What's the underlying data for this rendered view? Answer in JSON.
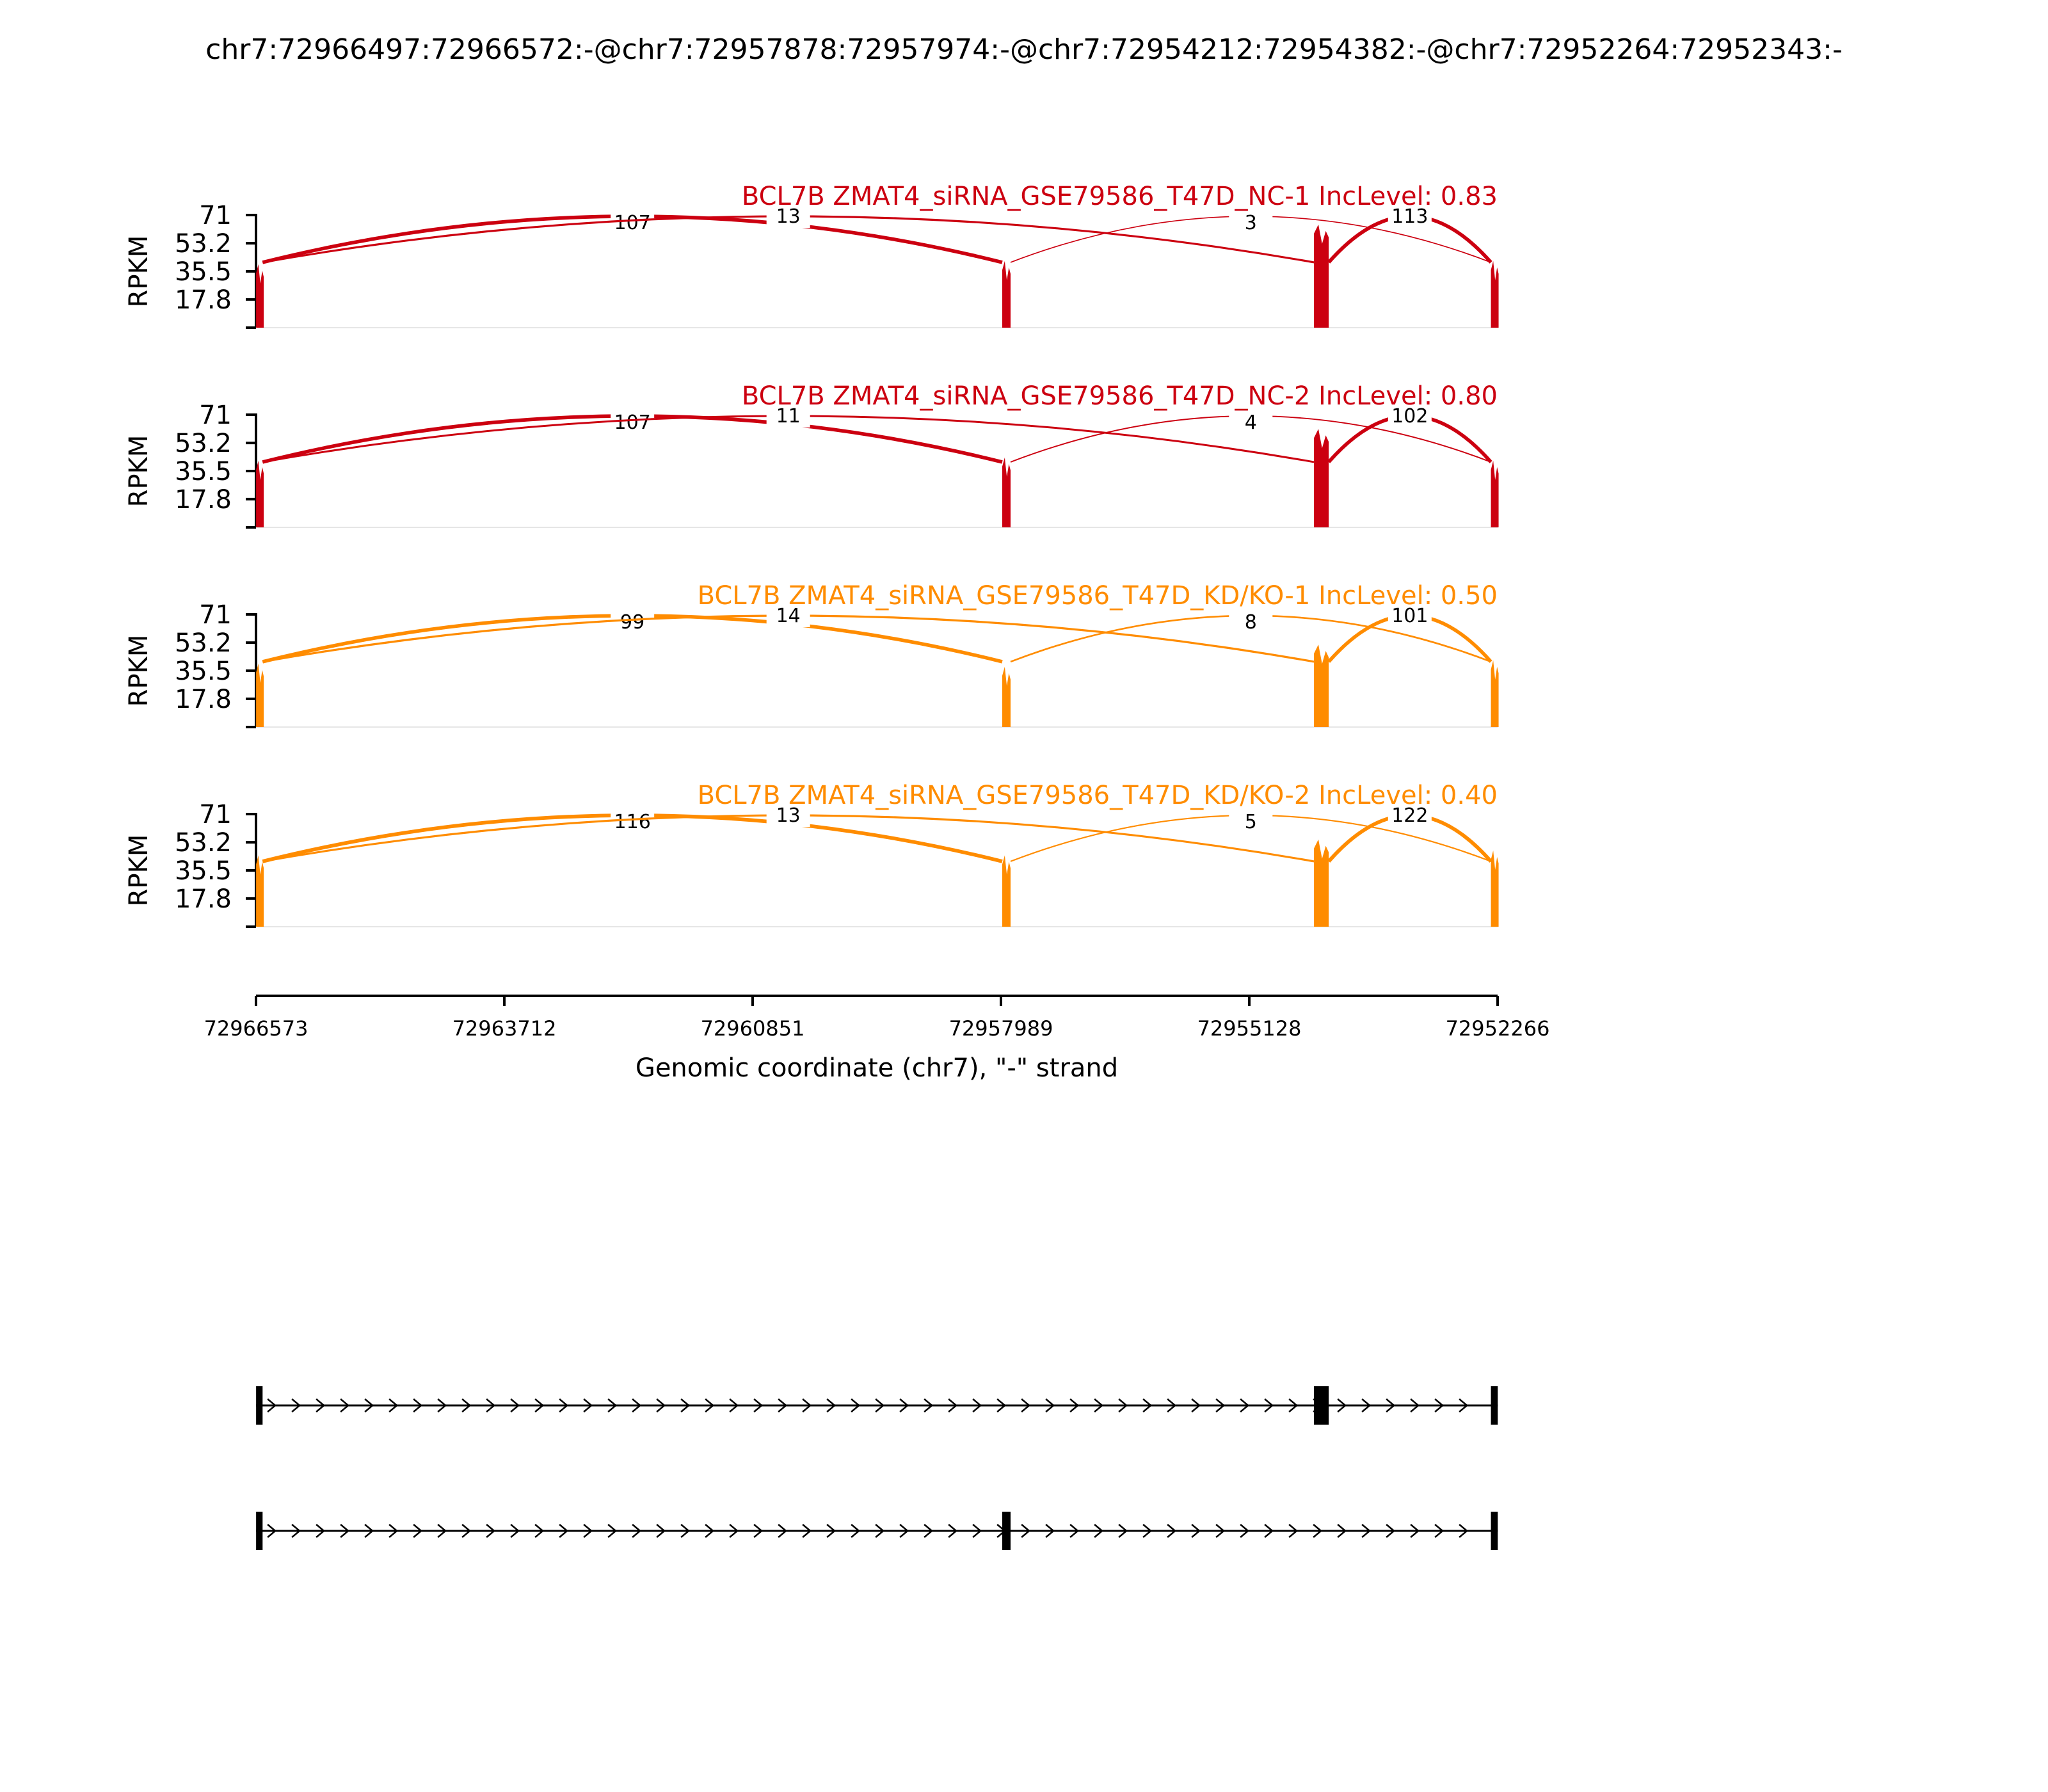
{
  "chart_data": {
    "type": "area",
    "title": "chr7:72966497:72966572:-@chr7:72957878:72957974:-@chr7:72954212:72954382:-@chr7:72952264:72952343:-",
    "ylabel": "RPKM",
    "xlabel": "Genomic coordinate (chr7), \"-\" strand",
    "ylim": [
      0,
      71
    ],
    "yticks": [
      "71",
      "53.2",
      "35.5",
      "17.8"
    ],
    "x_range": [
      72966573,
      72952266
    ],
    "xticks": [
      "72966573",
      "72963712",
      "72960851",
      "72957989",
      "72955128",
      "72952266"
    ],
    "exons": [
      {
        "start": 72966572,
        "end": 72966497
      },
      {
        "start": 72957974,
        "end": 72957878
      },
      {
        "start": 72954382,
        "end": 72954212
      },
      {
        "start": 72952343,
        "end": 72952264
      }
    ],
    "series": [
      {
        "name": "BCL7B ZMAT4_siRNA_GSE79586_T47D_NC-1 IncLevel: 0.83",
        "color": "#cc0010",
        "exon_heights": [
          40,
          42,
          65,
          42
        ],
        "junctions": [
          {
            "label": "107",
            "from": 72966497,
            "to": 72957974,
            "count": 107
          },
          {
            "label": "13",
            "from": 72966497,
            "to": 72954382,
            "count": 13
          },
          {
            "label": "3",
            "from": 72957878,
            "to": 72952343,
            "count": 3
          },
          {
            "label": "113",
            "from": 72954212,
            "to": 72952343,
            "count": 113
          }
        ]
      },
      {
        "name": "BCL7B ZMAT4_siRNA_GSE79586_T47D_NC-2 IncLevel: 0.80",
        "color": "#cc0010",
        "exon_heights": [
          42,
          44,
          62,
          42
        ],
        "junctions": [
          {
            "label": "107",
            "from": 72966497,
            "to": 72957974,
            "count": 107
          },
          {
            "label": "11",
            "from": 72966497,
            "to": 72954382,
            "count": 11
          },
          {
            "label": "4",
            "from": 72957878,
            "to": 72952343,
            "count": 4
          },
          {
            "label": "102",
            "from": 72954212,
            "to": 72952343,
            "count": 102
          }
        ]
      },
      {
        "name": "BCL7B ZMAT4_siRNA_GSE79586_T47D_KD/KO-1 IncLevel: 0.50",
        "color": "#ff8c00",
        "exon_heights": [
          40,
          38,
          52,
          42
        ],
        "junctions": [
          {
            "label": "99",
            "from": 72966497,
            "to": 72957974,
            "count": 99
          },
          {
            "label": "14",
            "from": 72966497,
            "to": 72954382,
            "count": 14
          },
          {
            "label": "8",
            "from": 72957878,
            "to": 72952343,
            "count": 8
          },
          {
            "label": "101",
            "from": 72954212,
            "to": 72952343,
            "count": 101
          }
        ]
      },
      {
        "name": "BCL7B ZMAT4_siRNA_GSE79586_T47D_KD/KO-2 IncLevel: 0.40",
        "color": "#ff8c00",
        "exon_heights": [
          45,
          45,
          55,
          48
        ],
        "junctions": [
          {
            "label": "116",
            "from": 72966497,
            "to": 72957974,
            "count": 116
          },
          {
            "label": "13",
            "from": 72966497,
            "to": 72954382,
            "count": 13
          },
          {
            "label": "5",
            "from": 72957878,
            "to": 72952343,
            "count": 5
          },
          {
            "label": "122",
            "from": 72954212,
            "to": 72952343,
            "count": 122
          }
        ]
      }
    ],
    "isoforms": [
      {
        "exons": [
          [
            72966572,
            72966497
          ],
          [
            72954382,
            72954212
          ],
          [
            72952343,
            72952264
          ]
        ]
      },
      {
        "exons": [
          [
            72966572,
            72966497
          ],
          [
            72957974,
            72957878
          ],
          [
            72952343,
            72952264
          ]
        ]
      }
    ]
  }
}
